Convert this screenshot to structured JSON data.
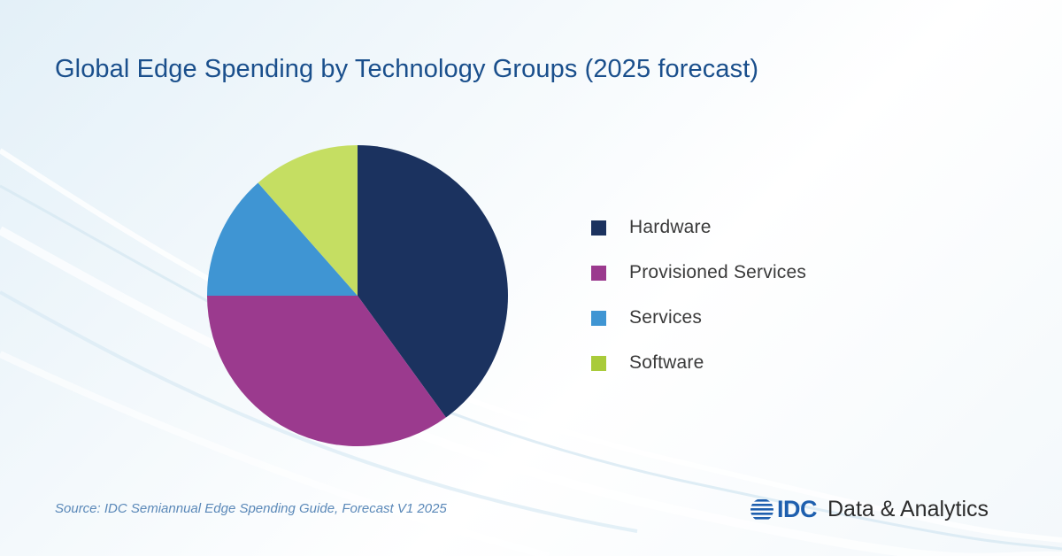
{
  "title": "Global Edge Spending by Technology Groups (2025 forecast)",
  "chart_data": {
    "type": "pie",
    "title": "Global Edge Spending by Technology Groups (2025 forecast)",
    "legend_position": "right",
    "categories": [
      "Hardware",
      "Provisioned Services",
      "Services",
      "Software"
    ],
    "values": [
      40,
      35,
      13.5,
      11.5
    ],
    "colors": [
      "#1b325f",
      "#9b3a8e",
      "#3f95d3",
      "#c5de62"
    ],
    "legend_swatch_colors": [
      "#1b325f",
      "#9b3a8e",
      "#3f95d3",
      "#a9cb3a"
    ]
  },
  "source": "Source: IDC Semiannual Edge Spending Guide, Forecast V1 2025",
  "brand": {
    "mark": "IDC",
    "text": "Data & Analytics",
    "color": "#1e5fae"
  }
}
